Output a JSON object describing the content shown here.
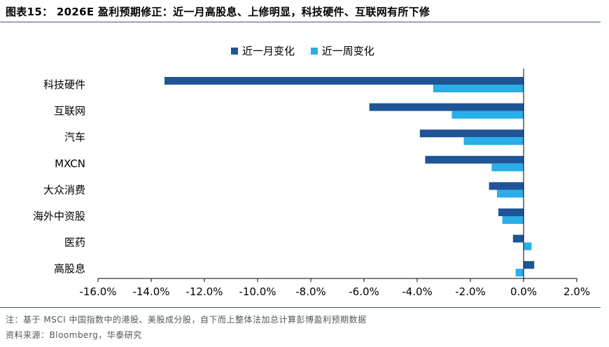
{
  "title": "图表15： 2026E 盈利预期修正：近一月高股息、上修明显，科技硬件、互联网有所下修",
  "notes": {
    "note": "注：基于 MSCI 中国指数中的港股、美股成分股，自下而上整体法加总计算彭博盈利预期数据",
    "source": "资料来源：Bloomberg，华泰研究"
  },
  "colors": {
    "rule": "#2c5a8c",
    "month": "#1f5597",
    "week": "#29aee8",
    "axis": "#000000"
  },
  "chart_data": {
    "type": "bar",
    "orientation": "horizontal",
    "categories": [
      "科技硬件",
      "互联网",
      "汽车",
      "MXCN",
      "大众消费",
      "海外中资股",
      "医药",
      "高股息"
    ],
    "series": [
      {
        "name": "近一月变化",
        "values": [
          -13.5,
          -5.8,
          -3.9,
          -3.7,
          -1.3,
          -0.95,
          -0.4,
          0.4
        ]
      },
      {
        "name": "近一周变化",
        "values": [
          -3.4,
          -2.7,
          -2.25,
          -1.2,
          -1.0,
          -0.8,
          0.3,
          -0.3
        ]
      }
    ],
    "xlim": [
      -16,
      2
    ],
    "xticks": [
      "-16.0%",
      "-14.0%",
      "-12.0%",
      "-10.0%",
      "-8.0%",
      "-6.0%",
      "-4.0%",
      "-2.0%",
      "0.0%",
      "2.0%"
    ],
    "xtick_values": [
      -16,
      -14,
      -12,
      -10,
      -8,
      -6,
      -4,
      -2,
      0,
      2
    ],
    "legend_position": "top",
    "grid": false
  }
}
